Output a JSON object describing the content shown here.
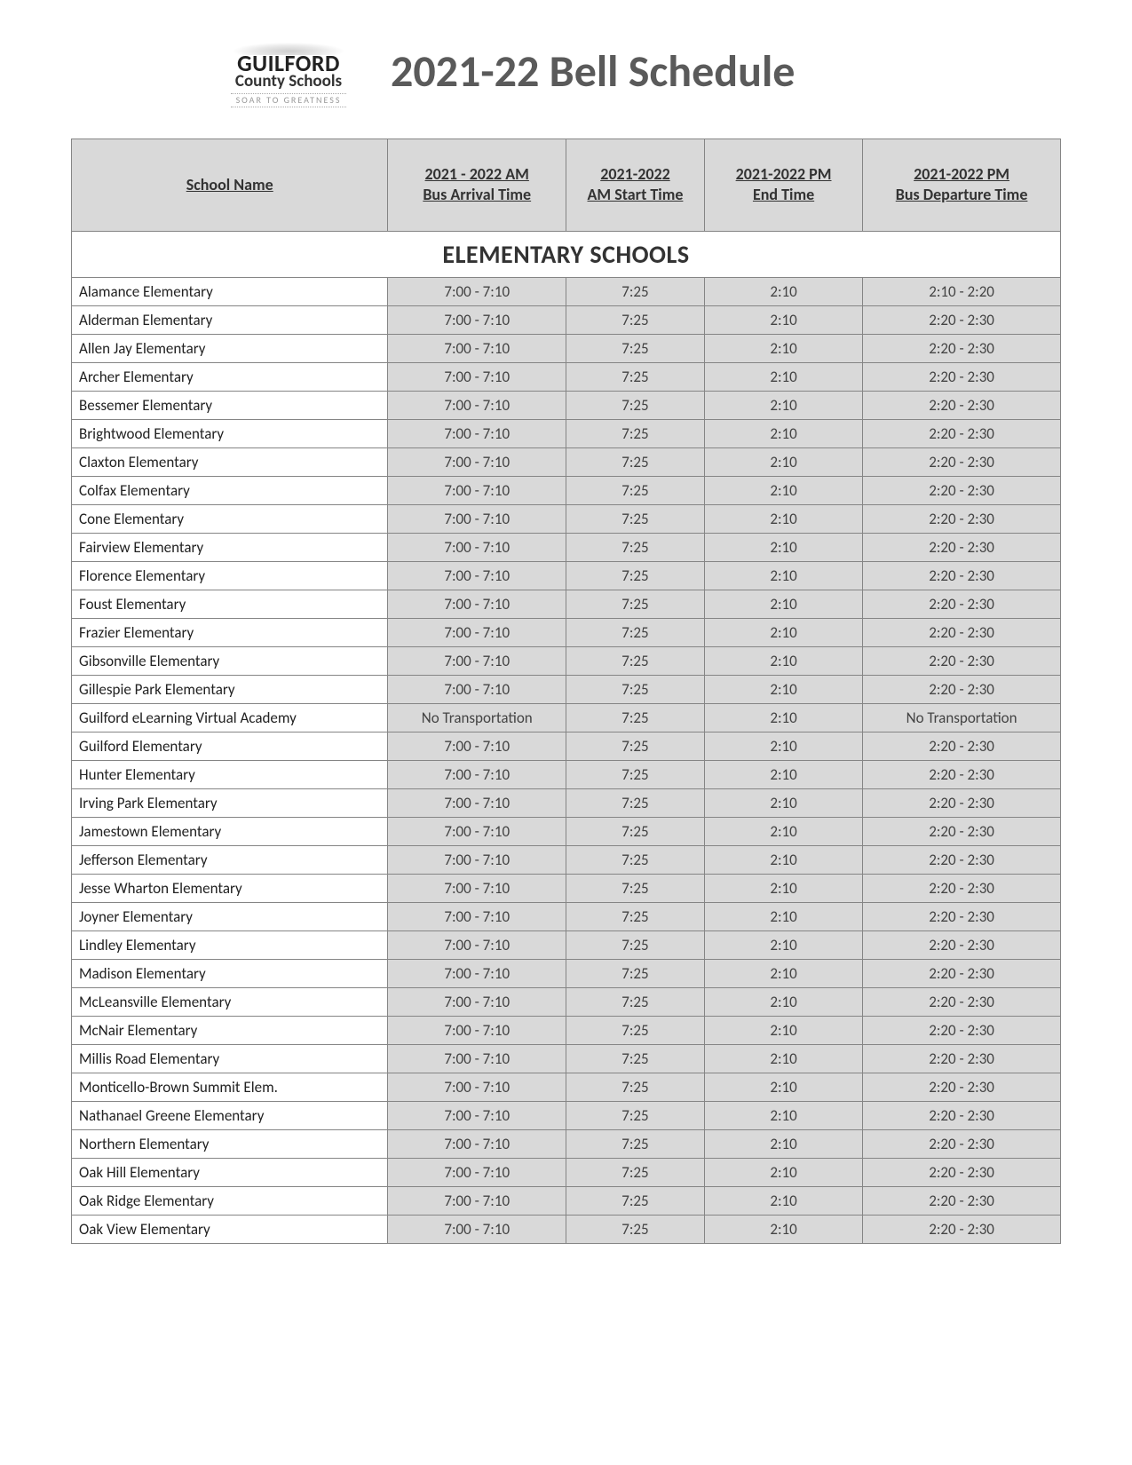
{
  "logo": {
    "line1": "GUILFORD",
    "line2": "County Schools",
    "tagline": "SOAR TO GREATNESS"
  },
  "page_title": "2021-22 Bell Schedule",
  "columns": [
    "School Name",
    "2021 - 2022 AM\nBus Arrival Time",
    "2021-2022\nAM Start Time",
    "2021-2022 PM\nEnd Time",
    "2021-2022 PM\nBus Departure Time"
  ],
  "section_title": "ELEMENTARY SCHOOLS",
  "rows": [
    [
      "Alamance Elementary",
      "7:00 - 7:10",
      "7:25",
      "2:10",
      "2:10 - 2:20"
    ],
    [
      "Alderman Elementary",
      "7:00 - 7:10",
      "7:25",
      "2:10",
      "2:20 - 2:30"
    ],
    [
      "Allen Jay Elementary",
      "7:00 - 7:10",
      "7:25",
      "2:10",
      "2:20 - 2:30"
    ],
    [
      "Archer Elementary",
      "7:00 - 7:10",
      "7:25",
      "2:10",
      "2:20 - 2:30"
    ],
    [
      "Bessemer Elementary",
      "7:00 - 7:10",
      "7:25",
      "2:10",
      "2:20 - 2:30"
    ],
    [
      "Brightwood Elementary",
      "7:00 - 7:10",
      "7:25",
      "2:10",
      "2:20 - 2:30"
    ],
    [
      "Claxton Elementary",
      "7:00 - 7:10",
      "7:25",
      "2:10",
      "2:20 - 2:30"
    ],
    [
      "Colfax Elementary",
      "7:00 - 7:10",
      "7:25",
      "2:10",
      "2:20 - 2:30"
    ],
    [
      "Cone Elementary",
      "7:00 - 7:10",
      "7:25",
      "2:10",
      "2:20 - 2:30"
    ],
    [
      "Fairview Elementary",
      "7:00 - 7:10",
      "7:25",
      "2:10",
      "2:20 - 2:30"
    ],
    [
      "Florence Elementary",
      "7:00 - 7:10",
      "7:25",
      "2:10",
      "2:20 - 2:30"
    ],
    [
      "Foust Elementary",
      "7:00 - 7:10",
      "7:25",
      "2:10",
      "2:20 - 2:30"
    ],
    [
      "Frazier Elementary",
      "7:00 - 7:10",
      "7:25",
      "2:10",
      "2:20 - 2:30"
    ],
    [
      "Gibsonville Elementary",
      "7:00 - 7:10",
      "7:25",
      "2:10",
      "2:20 - 2:30"
    ],
    [
      "Gillespie Park Elementary",
      "7:00 - 7:10",
      "7:25",
      "2:10",
      "2:20 - 2:30"
    ],
    [
      "Guilford eLearning Virtual Academy",
      "No Transportation",
      "7:25",
      "2:10",
      "No Transportation"
    ],
    [
      "Guilford Elementary",
      "7:00 - 7:10",
      "7:25",
      "2:10",
      "2:20 - 2:30"
    ],
    [
      "Hunter Elementary",
      "7:00 - 7:10",
      "7:25",
      "2:10",
      "2:20 - 2:30"
    ],
    [
      "Irving Park Elementary",
      "7:00 - 7:10",
      "7:25",
      "2:10",
      "2:20 - 2:30"
    ],
    [
      "Jamestown Elementary",
      "7:00 - 7:10",
      "7:25",
      "2:10",
      "2:20 - 2:30"
    ],
    [
      "Jefferson Elementary",
      "7:00 - 7:10",
      "7:25",
      "2:10",
      "2:20 - 2:30"
    ],
    [
      "Jesse Wharton Elementary",
      "7:00 - 7:10",
      "7:25",
      "2:10",
      "2:20 - 2:30"
    ],
    [
      "Joyner Elementary",
      "7:00 - 7:10",
      "7:25",
      "2:10",
      "2:20 - 2:30"
    ],
    [
      "Lindley Elementary",
      "7:00 - 7:10",
      "7:25",
      "2:10",
      "2:20 - 2:30"
    ],
    [
      "Madison Elementary",
      "7:00 - 7:10",
      "7:25",
      "2:10",
      "2:20 - 2:30"
    ],
    [
      "McLeansville Elementary",
      "7:00 - 7:10",
      "7:25",
      "2:10",
      "2:20 - 2:30"
    ],
    [
      "McNair Elementary",
      "7:00 - 7:10",
      "7:25",
      "2:10",
      "2:20 - 2:30"
    ],
    [
      "Millis Road Elementary",
      "7:00 - 7:10",
      "7:25",
      "2:10",
      "2:20 - 2:30"
    ],
    [
      "Monticello-Brown Summit Elem.",
      "7:00 - 7:10",
      "7:25",
      "2:10",
      "2:20 - 2:30"
    ],
    [
      "Nathanael Greene Elementary",
      "7:00 - 7:10",
      "7:25",
      "2:10",
      "2:20 - 2:30"
    ],
    [
      "Northern Elementary",
      "7:00 - 7:10",
      "7:25",
      "2:10",
      "2:20 - 2:30"
    ],
    [
      "Oak Hill Elementary",
      "7:00 - 7:10",
      "7:25",
      "2:10",
      "2:20 - 2:30"
    ],
    [
      "Oak Ridge Elementary",
      "7:00 - 7:10",
      "7:25",
      "2:10",
      "2:20 - 2:30"
    ],
    [
      "Oak View Elementary",
      "7:00 - 7:10",
      "7:25",
      "2:10",
      "2:20 - 2:30"
    ]
  ],
  "colors": {
    "header_bg": "#d9d9d9",
    "data_cell_bg": "#d9d9d9",
    "name_cell_bg": "#ffffff",
    "border": "#858585",
    "title_color": "#5a5a5a"
  }
}
